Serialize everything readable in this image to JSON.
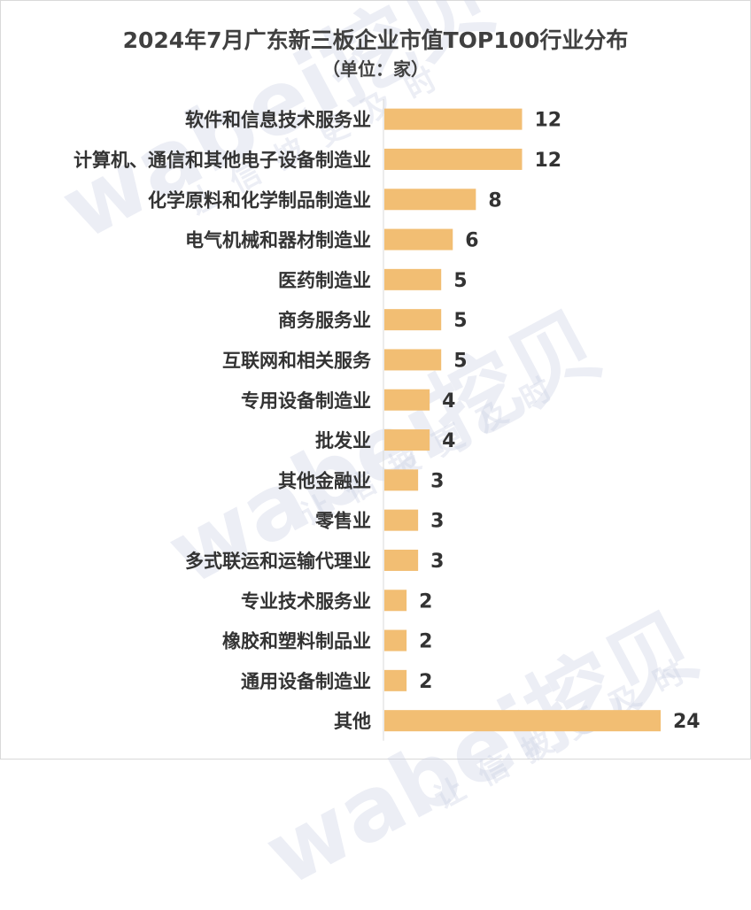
{
  "chart_data": {
    "type": "bar",
    "orientation": "horizontal",
    "title": "2024年7月广东新三板企业市值TOP100行业分布",
    "subtitle": "（单位：家）",
    "categories": [
      "软件和信息技术服务业",
      "计算机、通信和其他电子设备制造业",
      "化学原料和化学制品制造业",
      "电气机械和器材制造业",
      "医药制造业",
      "商务服务业",
      "互联网和相关服务",
      "专用设备制造业",
      "批发业",
      "其他金融业",
      "零售业",
      "多式联运和运输代理业",
      "专业技术服务业",
      "橡胶和塑料制品业",
      "通用设备制造业",
      "其他"
    ],
    "values": [
      12,
      12,
      8,
      6,
      5,
      5,
      5,
      4,
      4,
      3,
      3,
      3,
      2,
      2,
      2,
      24
    ],
    "xlim": [
      0,
      24
    ],
    "grid": false,
    "bar_color": "#F2BE73"
  },
  "watermark": {
    "brand": "wabei挖贝",
    "slogan": "让信披更及时"
  }
}
